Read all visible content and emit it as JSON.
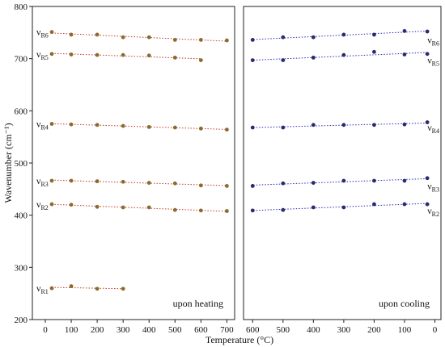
{
  "chart_data": {
    "type": "scatter",
    "ylabel": "Wavenumber (cm⁻¹)",
    "xlabel": "Temperature (°C)",
    "ylim": [
      200,
      800
    ],
    "yticks": [
      200,
      300,
      400,
      500,
      600,
      700,
      800
    ],
    "grid": false,
    "legend": "none",
    "colors": {
      "heating_points": "#8b6a2e",
      "heating_fit": "#c0392b",
      "cooling_points": "#2a2a6e",
      "cooling_fit": "#2a2ab8",
      "axis": "#222222"
    },
    "panels": [
      {
        "label": "upon heating",
        "xlim": [
          -50,
          730
        ],
        "xticks": [
          0,
          100,
          200,
          300,
          400,
          500,
          600,
          700
        ],
        "series": [
          {
            "label": "ν",
            "sub": "R6",
            "x": [
              25,
              100,
              200,
              300,
              400,
              500,
              600,
              700
            ],
            "y": [
              751,
              746,
              746,
              741,
              741,
              736,
              736,
              735
            ]
          },
          {
            "label": "ν",
            "sub": "R5",
            "x": [
              25,
              100,
              200,
              300,
              400,
              500,
              600
            ],
            "y": [
              709,
              708,
              707,
              707,
              706,
              702,
              697
            ]
          },
          {
            "label": "ν",
            "sub": "R4",
            "x": [
              25,
              100,
              200,
              300,
              400,
              500,
              600,
              700
            ],
            "y": [
              575,
              574,
              573,
              571,
              569,
              568,
              566,
              564
            ]
          },
          {
            "label": "ν",
            "sub": "R3",
            "x": [
              25,
              100,
              200,
              300,
              400,
              500,
              600,
              700
            ],
            "y": [
              466,
              466,
              465,
              464,
              462,
              461,
              457,
              456
            ]
          },
          {
            "label": "ν",
            "sub": "R2",
            "x": [
              25,
              100,
              200,
              300,
              400,
              500,
              600,
              700
            ],
            "y": [
              421,
              420,
              416,
              415,
              415,
              410,
              409,
              408
            ]
          },
          {
            "label": "ν",
            "sub": "R1",
            "x": [
              25,
              100,
              200,
              300
            ],
            "y": [
              260,
              264,
              259,
              259
            ]
          }
        ]
      },
      {
        "label": "upon cooling",
        "xlim": [
          630,
          -20
        ],
        "xticks": [
          600,
          500,
          400,
          300,
          200,
          100,
          0
        ],
        "series": [
          {
            "label": "ν",
            "sub": "R6",
            "x": [
              600,
              500,
              400,
              300,
              200,
              100,
              25
            ],
            "y": [
              736,
              741,
              741,
              746,
              746,
              753,
              752
            ]
          },
          {
            "label": "ν",
            "sub": "R5",
            "x": [
              600,
              500,
              400,
              300,
              200,
              100,
              25
            ],
            "y": [
              697,
              697,
              702,
              707,
              713,
              708,
              709
            ]
          },
          {
            "label": "ν",
            "sub": "R4",
            "x": [
              600,
              500,
              400,
              300,
              200,
              100,
              25
            ],
            "y": [
              568,
              568,
              573,
              573,
              573,
              574,
              578
            ]
          },
          {
            "label": "ν",
            "sub": "R3",
            "x": [
              600,
              500,
              400,
              300,
              200,
              100,
              25
            ],
            "y": [
              456,
              461,
              462,
              466,
              466,
              466,
              471
            ]
          },
          {
            "label": "ν",
            "sub": "R2",
            "x": [
              600,
              500,
              400,
              300,
              200,
              100,
              25
            ],
            "y": [
              409,
              410,
              415,
              415,
              421,
              421,
              421
            ]
          }
        ]
      }
    ]
  }
}
